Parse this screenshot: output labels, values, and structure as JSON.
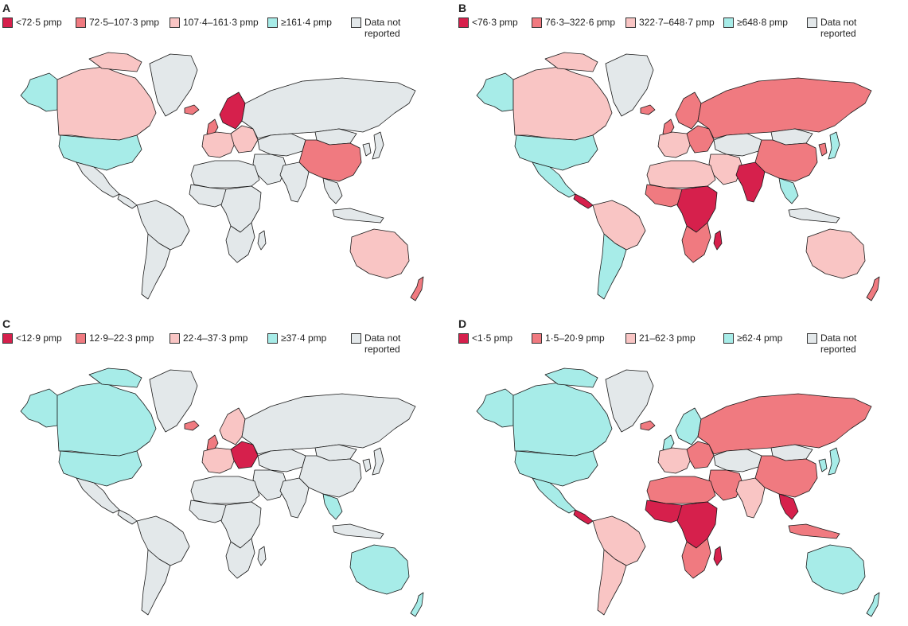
{
  "colors": {
    "darkest": "#d6204c",
    "medium": "#f07a80",
    "light": "#f9c5c4",
    "cyan": "#a7ece8",
    "grey": "#e3e8ea"
  },
  "panels": [
    {
      "letter": "A",
      "legend": [
        {
          "label": "<72·5 pmp",
          "color": "darkest"
        },
        {
          "label": "72·5–107·3 pmp",
          "color": "medium"
        },
        {
          "label": "107·4–161·3 pmp",
          "color": "light"
        },
        {
          "label": "≥161·4 pmp",
          "color": "cyan"
        },
        {
          "label": "Data not reported",
          "color": "grey"
        }
      ],
      "regions": {
        "alaska": "cyan",
        "canada": "light",
        "greenland": "grey",
        "arctic_islands": "light",
        "usa": "cyan",
        "mexico": "grey",
        "central_america": "grey",
        "south_america_n": "grey",
        "south_america_s": "grey",
        "iceland": "medium",
        "uk": "medium",
        "scandinavia": "darkest",
        "west_europe": "light",
        "east_europe": "light",
        "russia": "grey",
        "central_asia": "grey",
        "mongolia": "grey",
        "china": "medium",
        "middle_east": "grey",
        "india": "grey",
        "se_asia": "grey",
        "japan": "grey",
        "korea": "grey",
        "n_africa": "grey",
        "w_africa": "grey",
        "central_africa": "grey",
        "s_africa": "grey",
        "madagascar": "grey",
        "indonesia": "grey",
        "australia": "light",
        "new_zealand": "medium"
      }
    },
    {
      "letter": "B",
      "legend": [
        {
          "label": "<76·3 pmp",
          "color": "darkest"
        },
        {
          "label": "76·3–322·6 pmp",
          "color": "medium"
        },
        {
          "label": "322·7–648·7 pmp",
          "color": "light"
        },
        {
          "label": "≥648·8 pmp",
          "color": "cyan"
        },
        {
          "label": "Data not reported",
          "color": "grey"
        }
      ],
      "regions": {
        "alaska": "cyan",
        "canada": "light",
        "greenland": "grey",
        "arctic_islands": "light",
        "usa": "cyan",
        "mexico": "cyan",
        "central_america": "darkest",
        "south_america_n": "light",
        "south_america_s": "cyan",
        "iceland": "medium",
        "uk": "medium",
        "scandinavia": "medium",
        "west_europe": "light",
        "east_europe": "medium",
        "russia": "medium",
        "central_asia": "grey",
        "mongolia": "grey",
        "china": "medium",
        "middle_east": "light",
        "india": "darkest",
        "se_asia": "cyan",
        "japan": "cyan",
        "korea": "medium",
        "n_africa": "light",
        "w_africa": "medium",
        "central_africa": "darkest",
        "s_africa": "medium",
        "madagascar": "darkest",
        "indonesia": "grey",
        "australia": "light",
        "new_zealand": "medium"
      }
    },
    {
      "letter": "C",
      "legend": [
        {
          "label": "<12·9 pmp",
          "color": "darkest"
        },
        {
          "label": "12·9–22·3 pmp",
          "color": "medium"
        },
        {
          "label": "22·4–37·3 pmp",
          "color": "light"
        },
        {
          "label": "≥37·4 pmp",
          "color": "cyan"
        },
        {
          "label": "Data not reported",
          "color": "grey"
        }
      ],
      "regions": {
        "alaska": "cyan",
        "canada": "cyan",
        "greenland": "grey",
        "arctic_islands": "cyan",
        "usa": "cyan",
        "mexico": "grey",
        "central_america": "grey",
        "south_america_n": "grey",
        "south_america_s": "grey",
        "iceland": "medium",
        "uk": "medium",
        "scandinavia": "light",
        "west_europe": "light",
        "east_europe": "darkest",
        "russia": "grey",
        "central_asia": "grey",
        "mongolia": "grey",
        "china": "grey",
        "middle_east": "grey",
        "india": "grey",
        "se_asia": "cyan",
        "japan": "grey",
        "korea": "grey",
        "n_africa": "grey",
        "w_africa": "grey",
        "central_africa": "grey",
        "s_africa": "grey",
        "madagascar": "grey",
        "indonesia": "grey",
        "australia": "cyan",
        "new_zealand": "cyan"
      }
    },
    {
      "letter": "D",
      "legend": [
        {
          "label": "<1·5 pmp",
          "color": "darkest"
        },
        {
          "label": "1·5–20·9 pmp",
          "color": "medium"
        },
        {
          "label": "21–62·3 pmp",
          "color": "light"
        },
        {
          "label": "≥62·4 pmp",
          "color": "cyan"
        },
        {
          "label": "Data not reported",
          "color": "grey"
        }
      ],
      "regions": {
        "alaska": "cyan",
        "canada": "cyan",
        "greenland": "grey",
        "arctic_islands": "cyan",
        "usa": "cyan",
        "mexico": "cyan",
        "central_america": "darkest",
        "south_america_n": "light",
        "south_america_s": "light",
        "iceland": "medium",
        "uk": "cyan",
        "scandinavia": "cyan",
        "west_europe": "light",
        "east_europe": "medium",
        "russia": "medium",
        "central_asia": "grey",
        "mongolia": "grey",
        "china": "medium",
        "middle_east": "medium",
        "india": "light",
        "se_asia": "darkest",
        "japan": "cyan",
        "korea": "cyan",
        "n_africa": "medium",
        "w_africa": "darkest",
        "central_africa": "darkest",
        "s_africa": "medium",
        "madagascar": "darkest",
        "indonesia": "medium",
        "australia": "cyan",
        "new_zealand": "cyan"
      }
    }
  ]
}
